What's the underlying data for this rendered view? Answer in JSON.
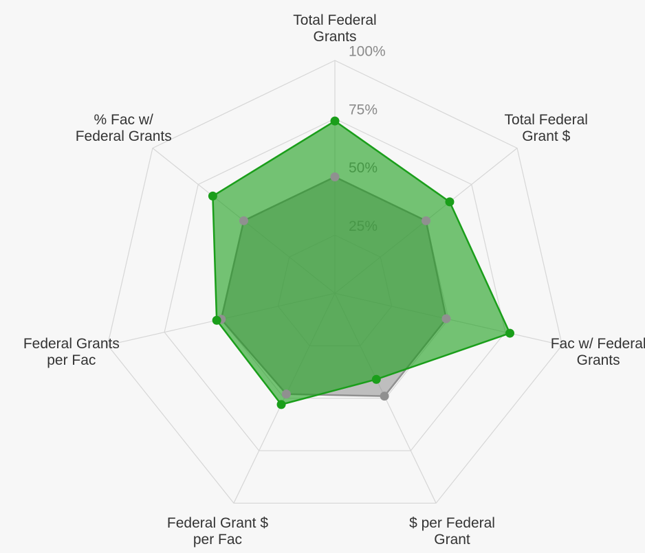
{
  "chart_data": {
    "type": "radar",
    "categories": [
      "Total Federal Grants",
      "Total Federal Grant $",
      "Fac w/ Federal Grants",
      "$ per Federal Grant",
      "Federal Grant $ per Fac",
      "Federal Grants per Fac",
      "% Fac w/ Federal Grants"
    ],
    "series": [
      {
        "color": "#909090",
        "values": [
          50,
          50,
          49,
          49,
          48,
          50,
          50
        ]
      },
      {
        "color": "#1a9e1a",
        "values": [
          74,
          63,
          77,
          41,
          53,
          52,
          67
        ]
      }
    ],
    "ylim": [
      0,
      100
    ],
    "yticks": [
      {
        "value": 25,
        "label": "25%"
      },
      {
        "value": 50,
        "label": "50%"
      },
      {
        "value": 75,
        "label": "75%"
      },
      {
        "value": 100,
        "label": "100%"
      }
    ],
    "grid": true
  }
}
